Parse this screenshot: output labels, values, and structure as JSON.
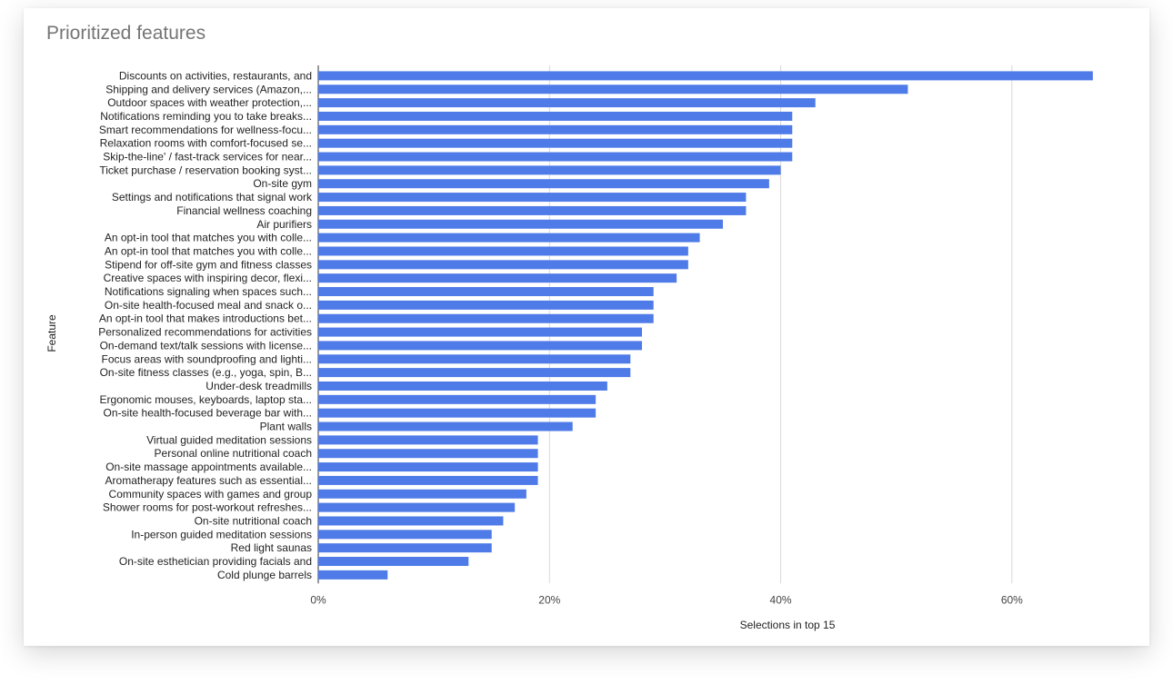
{
  "chart_data": {
    "type": "bar",
    "orientation": "horizontal",
    "title": "Prioritized features",
    "xlabel": "Selections in top 15",
    "ylabel": "Feature",
    "xlim": [
      0,
      0.7
    ],
    "xticks": [
      0,
      0.2,
      0.4,
      0.6
    ],
    "xtick_labels": [
      "0%",
      "20%",
      "40%",
      "60%"
    ],
    "grid": true,
    "bar_color": "#4f7be8",
    "categories": [
      "Discounts on activities, restaurants, and",
      "Shipping and delivery services (Amazon,...",
      "Outdoor spaces with weather protection,...",
      "Notifications reminding you to take breaks...",
      "Smart recommendations for wellness-focu...",
      "Relaxation rooms with comfort-focused se...",
      "Skip-the-line' / fast-track services for near...",
      "Ticket purchase / reservation booking syst...",
      "On-site gym",
      "Settings and notifications that signal work",
      "Financial wellness coaching",
      "Air purifiers",
      "An opt-in tool that matches you with colle...",
      "An opt-in tool that matches you with colle...",
      "Stipend for off-site gym and fitness classes",
      "Creative spaces with inspiring decor, flexi...",
      "Notifications signaling when spaces such...",
      "On-site health-focused meal and snack o...",
      "An opt-in tool that makes introductions bet...",
      "Personalized recommendations for activities",
      "On-demand text/talk sessions with license...",
      "Focus areas with soundproofing and lighti...",
      "On-site fitness classes (e.g., yoga, spin, B...",
      "Under-desk treadmills",
      "Ergonomic mouses, keyboards, laptop sta...",
      "On-site health-focused beverage bar with...",
      "Plant walls",
      "Virtual guided meditation sessions",
      "Personal online nutritional coach",
      "On-site massage appointments available...",
      "Aromatherapy features such as essential...",
      "Community spaces with games and group",
      "Shower rooms for post-workout refreshes...",
      "On-site nutritional coach",
      "In-person guided meditation sessions",
      "Red light saunas",
      "On-site esthetician providing facials and",
      "Cold plunge barrels"
    ],
    "values": [
      0.67,
      0.51,
      0.43,
      0.41,
      0.41,
      0.41,
      0.41,
      0.4,
      0.39,
      0.37,
      0.37,
      0.35,
      0.33,
      0.32,
      0.32,
      0.31,
      0.29,
      0.29,
      0.29,
      0.28,
      0.28,
      0.27,
      0.27,
      0.25,
      0.24,
      0.24,
      0.22,
      0.19,
      0.19,
      0.19,
      0.19,
      0.18,
      0.17,
      0.16,
      0.15,
      0.15,
      0.13,
      0.06
    ]
  }
}
